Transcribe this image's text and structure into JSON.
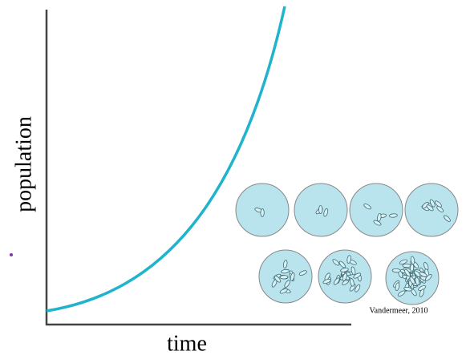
{
  "y_axis_label": "population",
  "x_axis_label": "time",
  "credit": "Vandermeer, 2010"
}
